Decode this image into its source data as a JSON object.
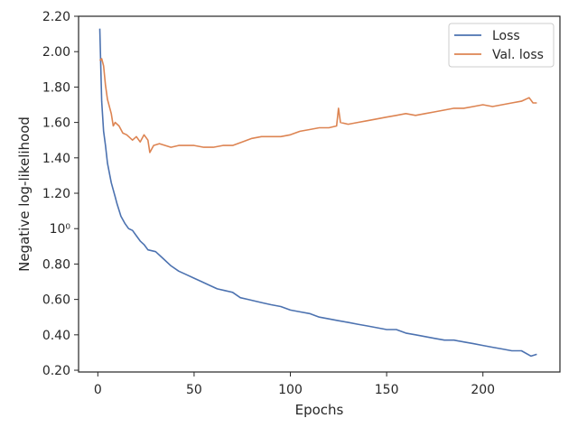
{
  "chart_data": {
    "type": "line",
    "title": "",
    "xlabel": "Epochs",
    "ylabel": "Negative log-likelihood",
    "xlim": [
      -10,
      240
    ],
    "ylim": [
      0.19,
      2.2
    ],
    "x_ticks": [
      0,
      50,
      100,
      150,
      200
    ],
    "x_tick_labels": [
      "0",
      "50",
      "100",
      "150",
      "200"
    ],
    "y_ticks": [
      0.2,
      0.4,
      0.6,
      0.8,
      1.0,
      1.2,
      1.4,
      1.6,
      1.8,
      2.0,
      2.2
    ],
    "y_tick_labels": [
      "0.20",
      "0.40",
      "0.60",
      "0.80",
      "10⁰",
      "1.20",
      "1.40",
      "1.60",
      "1.80",
      "2.00",
      "2.20"
    ],
    "legend_position": "top-right",
    "grid": false,
    "series": [
      {
        "name": "Loss",
        "color": "#4c72b0",
        "points": [
          [
            1,
            2.13
          ],
          [
            2,
            1.72
          ],
          [
            3,
            1.55
          ],
          [
            4,
            1.47
          ],
          [
            5,
            1.37
          ],
          [
            7,
            1.26
          ],
          [
            9,
            1.18
          ],
          [
            10,
            1.14
          ],
          [
            12,
            1.07
          ],
          [
            14,
            1.03
          ],
          [
            16,
            1.0
          ],
          [
            18,
            0.99
          ],
          [
            20,
            0.96
          ],
          [
            22,
            0.93
          ],
          [
            24,
            0.91
          ],
          [
            26,
            0.88
          ],
          [
            30,
            0.87
          ],
          [
            34,
            0.83
          ],
          [
            38,
            0.79
          ],
          [
            42,
            0.76
          ],
          [
            46,
            0.74
          ],
          [
            50,
            0.72
          ],
          [
            54,
            0.7
          ],
          [
            58,
            0.68
          ],
          [
            62,
            0.66
          ],
          [
            66,
            0.65
          ],
          [
            70,
            0.64
          ],
          [
            74,
            0.61
          ],
          [
            78,
            0.6
          ],
          [
            82,
            0.59
          ],
          [
            86,
            0.58
          ],
          [
            90,
            0.57
          ],
          [
            95,
            0.56
          ],
          [
            100,
            0.54
          ],
          [
            105,
            0.53
          ],
          [
            110,
            0.52
          ],
          [
            115,
            0.5
          ],
          [
            120,
            0.49
          ],
          [
            125,
            0.48
          ],
          [
            130,
            0.47
          ],
          [
            135,
            0.46
          ],
          [
            140,
            0.45
          ],
          [
            145,
            0.44
          ],
          [
            150,
            0.43
          ],
          [
            155,
            0.43
          ],
          [
            160,
            0.41
          ],
          [
            165,
            0.4
          ],
          [
            170,
            0.39
          ],
          [
            175,
            0.38
          ],
          [
            180,
            0.37
          ],
          [
            185,
            0.37
          ],
          [
            190,
            0.36
          ],
          [
            195,
            0.35
          ],
          [
            200,
            0.34
          ],
          [
            205,
            0.33
          ],
          [
            210,
            0.32
          ],
          [
            215,
            0.31
          ],
          [
            220,
            0.31
          ],
          [
            225,
            0.28
          ],
          [
            228,
            0.29
          ]
        ]
      },
      {
        "name": "Val. loss",
        "color": "#dd8452",
        "points": [
          [
            1,
            1.95
          ],
          [
            2,
            1.96
          ],
          [
            3,
            1.92
          ],
          [
            4,
            1.81
          ],
          [
            5,
            1.73
          ],
          [
            7,
            1.65
          ],
          [
            8,
            1.58
          ],
          [
            9,
            1.6
          ],
          [
            11,
            1.58
          ],
          [
            13,
            1.54
          ],
          [
            15,
            1.53
          ],
          [
            18,
            1.5
          ],
          [
            20,
            1.52
          ],
          [
            22,
            1.49
          ],
          [
            24,
            1.53
          ],
          [
            26,
            1.5
          ],
          [
            27,
            1.43
          ],
          [
            29,
            1.47
          ],
          [
            32,
            1.48
          ],
          [
            35,
            1.47
          ],
          [
            38,
            1.46
          ],
          [
            42,
            1.47
          ],
          [
            46,
            1.47
          ],
          [
            50,
            1.47
          ],
          [
            55,
            1.46
          ],
          [
            60,
            1.46
          ],
          [
            65,
            1.47
          ],
          [
            70,
            1.47
          ],
          [
            75,
            1.49
          ],
          [
            80,
            1.51
          ],
          [
            85,
            1.52
          ],
          [
            90,
            1.52
          ],
          [
            95,
            1.52
          ],
          [
            100,
            1.53
          ],
          [
            105,
            1.55
          ],
          [
            110,
            1.56
          ],
          [
            115,
            1.57
          ],
          [
            120,
            1.57
          ],
          [
            124,
            1.58
          ],
          [
            125,
            1.68
          ],
          [
            126,
            1.6
          ],
          [
            130,
            1.59
          ],
          [
            135,
            1.6
          ],
          [
            140,
            1.61
          ],
          [
            145,
            1.62
          ],
          [
            150,
            1.63
          ],
          [
            155,
            1.64
          ],
          [
            160,
            1.65
          ],
          [
            165,
            1.64
          ],
          [
            170,
            1.65
          ],
          [
            175,
            1.66
          ],
          [
            180,
            1.67
          ],
          [
            185,
            1.68
          ],
          [
            190,
            1.68
          ],
          [
            195,
            1.69
          ],
          [
            200,
            1.7
          ],
          [
            205,
            1.69
          ],
          [
            210,
            1.7
          ],
          [
            215,
            1.71
          ],
          [
            220,
            1.72
          ],
          [
            224,
            1.74
          ],
          [
            226,
            1.71
          ],
          [
            228,
            1.71
          ]
        ]
      }
    ]
  }
}
